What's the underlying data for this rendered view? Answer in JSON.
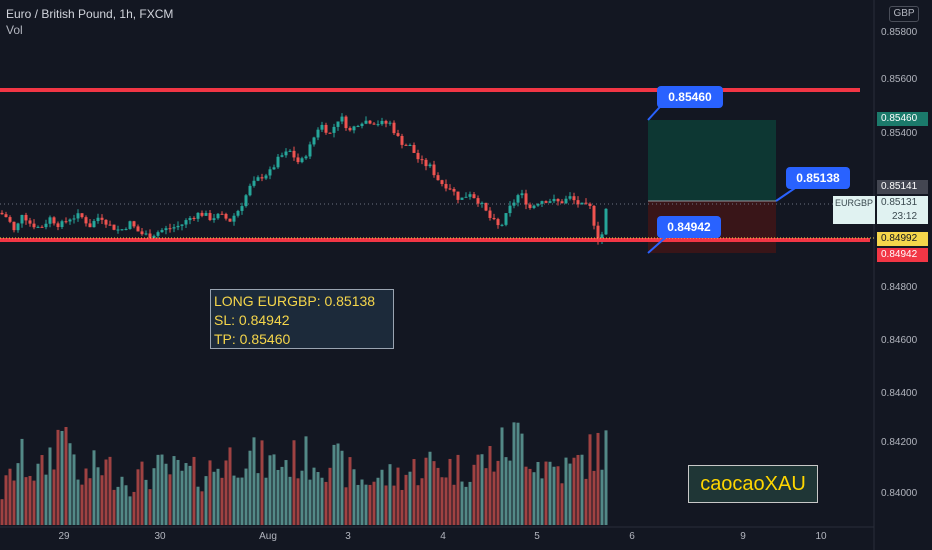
{
  "header": {
    "title": "Euro / British Pound, 1h, FXCM",
    "indicator": "Vol"
  },
  "currency": "GBP",
  "y_axis": {
    "ticks": [
      "0.85800",
      "0.85600",
      "0.85400",
      "0.84800",
      "0.84600",
      "0.84400",
      "0.84200",
      "0.84000"
    ]
  },
  "x_axis": {
    "ticks": [
      "29",
      "30",
      "Aug",
      "3",
      "4",
      "5",
      "6",
      "9",
      "10"
    ]
  },
  "price_labels": {
    "tp": "0.85460",
    "current_high": "0.85141",
    "symbol": "EURGBP",
    "last": "0.85131",
    "countdown": "23:12",
    "yellow": "0.84992",
    "sl": "0.84942"
  },
  "callouts": {
    "tp": "0.85460",
    "entry": "0.85138",
    "sl": "0.84942"
  },
  "trade_note": {
    "line1": "LONG EURGBP: 0.85138",
    "line2": "SL: 0.84942",
    "line3": "TP: 0.85460"
  },
  "signature": "caocaoXAU",
  "colors": {
    "up": "#26a69a",
    "down": "#ef5350",
    "level_line": "#f23645",
    "callout": "#2962ff",
    "note_text": "#f5d64b"
  },
  "chart_data": {
    "type": "candlestick",
    "symbol": "EURGBP",
    "timeframe": "1h",
    "levels": [
      0.8557,
      0.8494
    ],
    "position": {
      "side": "long",
      "entry": 0.85138,
      "stop_loss": 0.84942,
      "take_profit": 0.8546
    },
    "close_path": [
      [
        0,
        0.851
      ],
      [
        8,
        0.8508
      ],
      [
        15,
        0.8502
      ],
      [
        22,
        0.851
      ],
      [
        30,
        0.8506
      ],
      [
        40,
        0.8504
      ],
      [
        50,
        0.8508
      ],
      [
        60,
        0.8505
      ],
      [
        70,
        0.8508
      ],
      [
        80,
        0.8509
      ],
      [
        90,
        0.8505
      ],
      [
        100,
        0.8509
      ],
      [
        110,
        0.8505
      ],
      [
        120,
        0.8503
      ],
      [
        130,
        0.8506
      ],
      [
        140,
        0.8502
      ],
      [
        150,
        0.8501
      ],
      [
        160,
        0.8503
      ],
      [
        170,
        0.8504
      ],
      [
        180,
        0.8505
      ],
      [
        190,
        0.8508
      ],
      [
        200,
        0.851
      ],
      [
        210,
        0.8508
      ],
      [
        220,
        0.8509
      ],
      [
        230,
        0.8507
      ],
      [
        240,
        0.8512
      ],
      [
        250,
        0.852
      ],
      [
        260,
        0.8524
      ],
      [
        270,
        0.8526
      ],
      [
        280,
        0.8532
      ],
      [
        290,
        0.8534
      ],
      [
        300,
        0.8529
      ],
      [
        310,
        0.8536
      ],
      [
        320,
        0.8545
      ],
      [
        330,
        0.8541
      ],
      [
        340,
        0.8548
      ],
      [
        350,
        0.8542
      ],
      [
        360,
        0.8546
      ],
      [
        370,
        0.8546
      ],
      [
        380,
        0.8545
      ],
      [
        390,
        0.8545
      ],
      [
        400,
        0.8538
      ],
      [
        410,
        0.8536
      ],
      [
        420,
        0.853
      ],
      [
        430,
        0.8528
      ],
      [
        440,
        0.8522
      ],
      [
        450,
        0.852
      ],
      [
        460,
        0.8515
      ],
      [
        470,
        0.8518
      ],
      [
        480,
        0.8514
      ],
      [
        490,
        0.8508
      ],
      [
        500,
        0.8504
      ],
      [
        510,
        0.8512
      ],
      [
        520,
        0.8518
      ],
      [
        530,
        0.8512
      ],
      [
        540,
        0.8515
      ],
      [
        550,
        0.8515
      ],
      [
        560,
        0.8514
      ],
      [
        570,
        0.8516
      ],
      [
        580,
        0.8513
      ],
      [
        590,
        0.8512
      ],
      [
        600,
        0.8497
      ],
      [
        606,
        0.8511
      ]
    ],
    "volume_path": [
      [
        0,
        0.25
      ],
      [
        20,
        0.6
      ],
      [
        40,
        0.45
      ],
      [
        70,
        1.0
      ],
      [
        75,
        0.35
      ],
      [
        100,
        0.55
      ],
      [
        130,
        0.4
      ],
      [
        160,
        0.5
      ],
      [
        200,
        0.45
      ],
      [
        240,
        0.65
      ],
      [
        270,
        0.55
      ],
      [
        300,
        0.6
      ],
      [
        330,
        0.6
      ],
      [
        360,
        0.4
      ],
      [
        400,
        0.45
      ],
      [
        430,
        0.55
      ],
      [
        460,
        0.5
      ],
      [
        490,
        0.6
      ],
      [
        520,
        0.8
      ],
      [
        540,
        0.55
      ],
      [
        570,
        0.5
      ],
      [
        600,
        0.7
      ]
    ]
  }
}
